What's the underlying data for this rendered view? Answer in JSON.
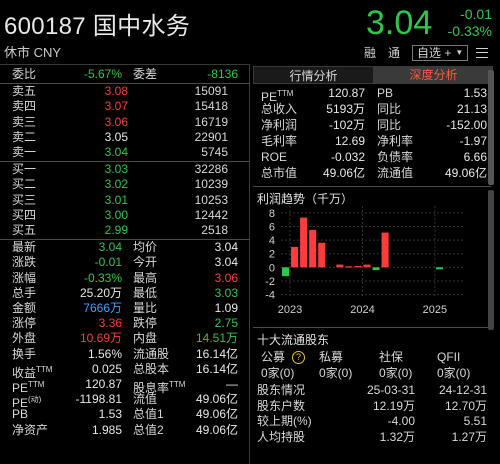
{
  "header": {
    "code_name": "600187 国中水务",
    "status": "休市 CNY",
    "price": "3.04",
    "change": "-0.01",
    "change_pct": "-0.33%",
    "btn_margin": "融",
    "btn_transfer": "通",
    "btn_self": "自选 +"
  },
  "order_book": {
    "weibi_label": "委比",
    "weibi_value": "-5.67%",
    "weicha_label": "委差",
    "weicha_value": "-8136",
    "asks": [
      {
        "label": "卖五",
        "price": "3.08",
        "vol": "15091"
      },
      {
        "label": "卖四",
        "price": "3.07",
        "vol": "15418"
      },
      {
        "label": "卖三",
        "price": "3.06",
        "vol": "16719"
      },
      {
        "label": "卖二",
        "price": "3.05",
        "vol": "22901"
      },
      {
        "label": "卖一",
        "price": "3.04",
        "vol": "5745"
      }
    ],
    "bids": [
      {
        "label": "买一",
        "price": "3.03",
        "vol": "32286"
      },
      {
        "label": "买二",
        "price": "3.02",
        "vol": "10239"
      },
      {
        "label": "买三",
        "price": "3.01",
        "vol": "10253"
      },
      {
        "label": "买四",
        "price": "3.00",
        "vol": "12442"
      },
      {
        "label": "买五",
        "price": "2.99",
        "vol": "2518"
      }
    ]
  },
  "quote": [
    {
      "l1": "最新",
      "v1": "3.04",
      "l2": "均价",
      "v2": "3.04"
    },
    {
      "l1": "涨跌",
      "v1": "-0.01",
      "l2": "今开",
      "v2": "3.04"
    },
    {
      "l1": "涨幅",
      "v1": "-0.33%",
      "l2": "最高",
      "v2": "3.06"
    },
    {
      "l1": "总手",
      "v1": "25.20万",
      "l2": "最低",
      "v2": "3.03"
    },
    {
      "l1": "金额",
      "v1": "7666万",
      "l2": "量比",
      "v2": "1.09"
    },
    {
      "l1": "涨停",
      "v1": "3.36",
      "l2": "跌停",
      "v2": "2.75"
    },
    {
      "l1": "外盘",
      "v1": "10.69万",
      "l2": "内盘",
      "v2": "14.51万"
    },
    {
      "l1": "换手",
      "v1": "1.56%",
      "l2": "流通股",
      "v2": "16.14亿"
    },
    {
      "l1": "收益",
      "l1sup": "TTM",
      "v1": "0.025",
      "l2": "总股本",
      "v2": "16.14亿"
    },
    {
      "l1": "PE",
      "l1sup": "TTM",
      "v1": "120.87",
      "l2": "股息率",
      "l2sup": "TTM",
      "v2": "—"
    },
    {
      "l1": "PE",
      "l1sup": "(动)",
      "v1": "-1198.81",
      "l2": "流值",
      "v2": "49.06亿"
    },
    {
      "l1": "PB",
      "v1": "1.53",
      "l2": "总值1",
      "v2": "49.06亿"
    },
    {
      "l1": "净资产",
      "v1": "1.985",
      "l2": "总值2",
      "v2": "49.06亿"
    }
  ],
  "tabs": {
    "tab1": "行情分析",
    "tab2": "深度分析"
  },
  "fundamentals": [
    {
      "l1": "PE",
      "l1sup": "TTM",
      "v1": "120.87",
      "l2": "PB",
      "v2": "1.53"
    },
    {
      "l1": "总收入",
      "v1": "5193万",
      "l2": "同比",
      "v2": "21.13"
    },
    {
      "l1": "净利润",
      "v1": "-102万",
      "l2": "同比",
      "v2": "-152.00"
    },
    {
      "l1": "毛利率",
      "v1": "12.69",
      "l2": "净利率",
      "v2": "-1.97"
    },
    {
      "l1": "ROE",
      "v1": "-0.032",
      "l2": "负债率",
      "v2": "6.66"
    },
    {
      "l1": "总市值",
      "v1": "49.06亿",
      "l2": "流通值",
      "v2": "49.06亿"
    }
  ],
  "profit_chart_title": "利润趋势（千万）",
  "chart_data": {
    "type": "bar",
    "title": "利润趋势（千万）",
    "yticks": [
      "8",
      "6",
      "4",
      "2",
      "0",
      "-2",
      "-4"
    ],
    "ylim": [
      -4.5,
      9
    ],
    "xticks": [
      "2023",
      "2024",
      "2025"
    ],
    "x_tick_positions": [
      0.5,
      8.5,
      16.5
    ],
    "series": [
      {
        "values": [
          -1.3,
          3.0,
          7.3,
          5.5,
          3.6,
          0.0,
          0.4,
          0.15,
          0.2,
          0.4,
          -0.4,
          5.1,
          0.0,
          0.0,
          0.0,
          0.0,
          0.0,
          -0.3,
          0.0
        ],
        "colors": [
          "#2ec74a",
          "#ff3b3b",
          "#ff3b3b",
          "#ff3b3b",
          "#ff3b3b",
          "#ff3b3b",
          "#ff3b3b",
          "#ff3b3b",
          "#ff3b3b",
          "#ff3b3b",
          "#2ec74a",
          "#ff3b3b",
          "#ff3b3b",
          "#ff3b3b",
          "#ff3b3b",
          "#ff3b3b",
          "#ff3b3b",
          "#2ec74a",
          "#ff3b3b"
        ]
      }
    ]
  },
  "holders": {
    "title": "十大流通股东",
    "headers": [
      "公募",
      "私募",
      "社保",
      "QFII"
    ],
    "counts": [
      "0家(0)",
      "0家(0)",
      "0家(0)",
      "0家(0)"
    ],
    "rows": [
      {
        "label": "股东情况",
        "a": "25-03-31",
        "b": "24-12-31"
      },
      {
        "label": "股东户数",
        "a": "12.19万",
        "b": "12.70万"
      },
      {
        "label": "较上期(%)",
        "a": "-4.00",
        "b": "5.51"
      },
      {
        "label": "人均持股",
        "a": "1.32万",
        "b": "1.27万"
      }
    ]
  }
}
